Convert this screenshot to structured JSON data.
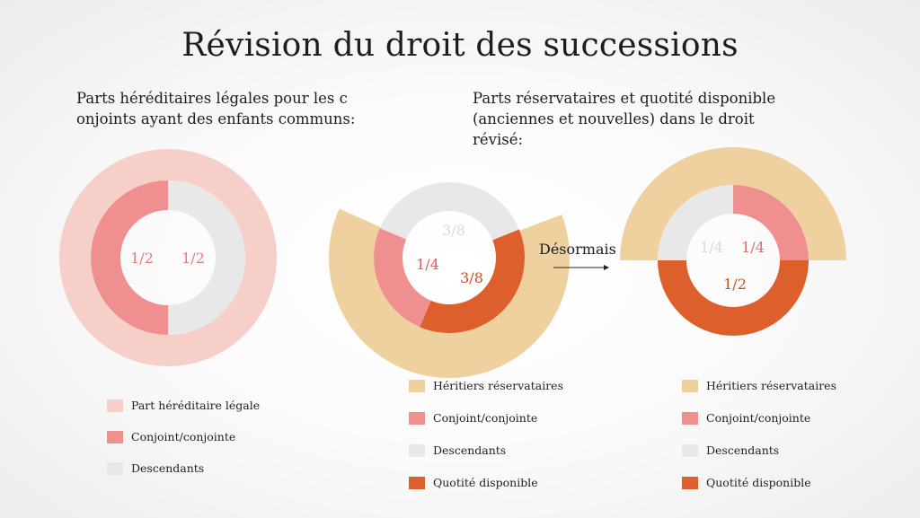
{
  "title": "Révision du droit des successions",
  "subtitles": {
    "left": "Parts héréditaires légales pour les c onjoints ayant des enfants communs:",
    "right": "Parts réservataires et quotité disponible (anciennes et nouvelles) dans le droit révisé:"
  },
  "arrow_label": "Désormais",
  "colors": {
    "part_hereditaire_legale": "#f6d0c8",
    "conjoint": "#f08f8f",
    "descendants": "#e8e8e8",
    "heritiers_reservataires": "#efd09f",
    "quotite_disponible": "#dd5f2b"
  },
  "chart_data": [
    {
      "type": "pie",
      "rings": [
        {
          "name": "Part héréditaire légale",
          "slices": [
            {
              "label": "Part héréditaire légale",
              "value": 1
            }
          ]
        },
        {
          "name": "Parts",
          "slices": [
            {
              "label": "Conjoint/conjointe",
              "value": 0.5,
              "text": "1/2"
            },
            {
              "label": "Descendants",
              "value": 0.5,
              "text": "1/2"
            }
          ]
        }
      ],
      "legend": [
        "Part héréditaire légale",
        "Conjoint/conjointe",
        "Descendants"
      ]
    },
    {
      "type": "pie",
      "rings": [
        {
          "name": "Héritiers réservataires",
          "slices": [
            {
              "label": "Héritiers réservataires",
              "value": 0.625
            },
            {
              "label": "Quotité disponible",
              "value": 0.375
            }
          ]
        },
        {
          "name": "Parts",
          "slices": [
            {
              "label": "Descendants",
              "value": 0.375,
              "text": "3/8"
            },
            {
              "label": "Quotité disponible",
              "value": 0.375,
              "text": "3/8"
            },
            {
              "label": "Conjoint/conjointe",
              "value": 0.25,
              "text": "1/4"
            }
          ]
        }
      ],
      "legend": [
        "Héritiers réservataires",
        "Conjoint/conjointe",
        "Descendants",
        "Quotité disponible"
      ]
    },
    {
      "type": "pie",
      "rings": [
        {
          "name": "Héritiers réservataires",
          "slices": [
            {
              "label": "Héritiers réservataires",
              "value": 0.5
            },
            {
              "label": "Quotité disponible",
              "value": 0.5
            }
          ]
        },
        {
          "name": "Parts",
          "slices": [
            {
              "label": "Descendants",
              "value": 0.25,
              "text": "1/4"
            },
            {
              "label": "Conjoint/conjointe",
              "value": 0.25,
              "text": "1/4"
            },
            {
              "label": "Quotité disponible",
              "value": 0.5,
              "text": "1/2"
            }
          ]
        }
      ],
      "legend": [
        "Héritiers réservataires",
        "Conjoint/conjointe",
        "Descendants",
        "Quotité disponible"
      ]
    }
  ]
}
